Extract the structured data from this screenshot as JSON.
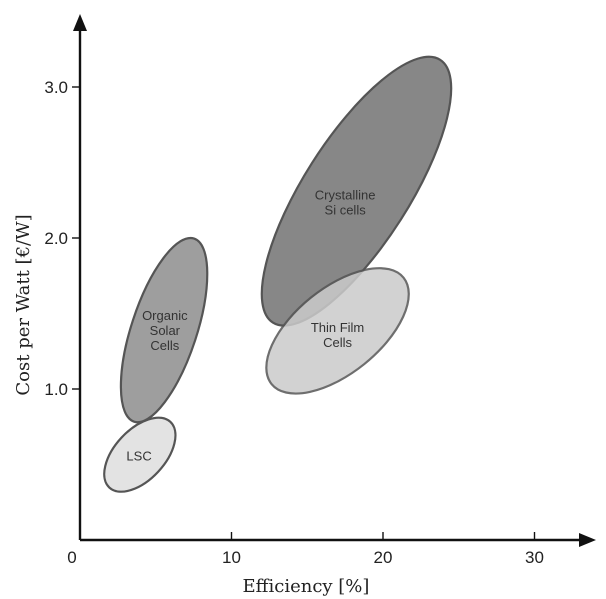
{
  "chart_data": {
    "type": "scatter",
    "title": "",
    "xlabel": "Efficiency [%]",
    "ylabel": "Cost per Watt [€/W]",
    "xlim": [
      0,
      35
    ],
    "ylim": [
      0,
      3.5
    ],
    "xticks": [
      {
        "value": 0,
        "label": "0"
      },
      {
        "value": 10,
        "label": "10"
      },
      {
        "value": 20,
        "label": "20"
      },
      {
        "value": 30,
        "label": "30"
      }
    ],
    "yticks": [
      {
        "value": 1.0,
        "label": "1.0"
      },
      {
        "value": 2.0,
        "label": "2.0"
      },
      {
        "value": 3.0,
        "label": "3.0"
      }
    ],
    "grid": false,
    "regions": [
      {
        "name": "LSC",
        "label_lines": [
          "LSC"
        ],
        "center": [
          3.9,
          0.56
        ],
        "x_range": [
          1.6,
          6.3
        ],
        "y_range": [
          0.32,
          0.81
        ],
        "color": "#e3e3e3"
      },
      {
        "name": "Organic Solar Cells",
        "label_lines": [
          "Organic",
          "Solar",
          "Cells"
        ],
        "center": [
          5.6,
          1.39
        ],
        "x_range": [
          2.7,
          8.4
        ],
        "y_range": [
          0.78,
          2.0
        ],
        "color": "#9e9e9e"
      },
      {
        "name": "Crystalline Si cells",
        "label_lines": [
          "Crystalline",
          "Si cells"
        ],
        "center": [
          17.5,
          2.24
        ],
        "x_range": [
          12.0,
          24.5
        ],
        "y_range": [
          1.42,
          3.2
        ],
        "color": "#878787"
      },
      {
        "name": "Thin Film Cells",
        "label_lines": [
          "Thin Film",
          "Cells"
        ],
        "center": [
          17.0,
          1.36
        ],
        "x_range": [
          12.3,
          21.7
        ],
        "y_range": [
          0.97,
          1.8
        ],
        "color": "#cbcbcb"
      }
    ]
  }
}
